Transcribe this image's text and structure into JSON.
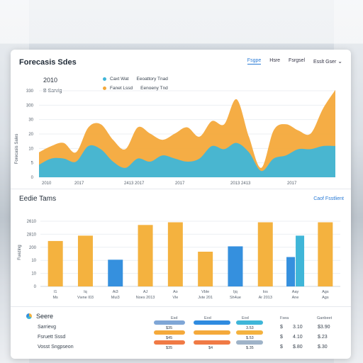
{
  "header": {
    "title": "Forecasis Sdes",
    "tabs": [
      "Fsgpe",
      "Hsre",
      "Fsrgsel"
    ],
    "account": "Esslt Gser"
  },
  "top_chart": {
    "year_label": "2010",
    "subtitle": "B Sarvig",
    "legend": [
      {
        "label": "Caxt Wat",
        "sublabel": "Eeoattory Tnad",
        "color": "#3fb6d8"
      },
      {
        "label": "Fanet Lssd",
        "sublabel": "Eenoeny Tnd",
        "color": "#f4a93b"
      }
    ],
    "ylabel": "Forecasis Sales",
    "yticks": [
      "330",
      "300",
      "30",
      "20",
      "10",
      "5",
      "0"
    ],
    "xticks": [
      "2010",
      "2017",
      "2413  2017",
      "2017",
      "2013  2413",
      "2017"
    ]
  },
  "chart_data": [
    {
      "type": "area",
      "title": "Forecasis Sdes",
      "ylabel": "Forecasis Sales",
      "x": [
        0,
        1,
        2,
        3,
        4,
        5,
        6,
        7,
        8,
        9,
        10,
        11,
        12,
        13,
        14,
        15,
        16,
        17,
        18,
        19,
        20,
        21,
        22,
        23,
        24
      ],
      "series": [
        {
          "name": "Caxt Wat",
          "color": "#3fb6d8",
          "values": [
            4,
            6,
            6,
            5,
            10,
            9,
            5,
            3,
            6,
            5,
            7,
            6,
            5,
            6,
            10,
            9,
            11,
            8,
            2,
            6,
            7,
            9,
            9,
            10,
            10
          ]
        },
        {
          "name": "Fanet Lssd",
          "color": "#f4a93b",
          "values": [
            8,
            10,
            11,
            8,
            16,
            17,
            12,
            9,
            16,
            14,
            12,
            14,
            16,
            13,
            18,
            17,
            25,
            13,
            3,
            15,
            17,
            15,
            14,
            22,
            28
          ]
        }
      ],
      "ylim": [
        0,
        30
      ]
    },
    {
      "type": "bar",
      "title": "Eedie Tams",
      "ylabel": "Fuezing",
      "categories": [
        "I1",
        "Iq",
        "Ai3",
        "AJ",
        "Ao",
        "Vble",
        "Ijq",
        "Ios",
        "Aay",
        "Ags"
      ],
      "series": [
        {
          "name": "orange",
          "color": "#f4b23f",
          "values": [
            17,
            19,
            null,
            23,
            24,
            13,
            null,
            24,
            null,
            24
          ]
        },
        {
          "name": "blue",
          "color": "#3590de",
          "values": [
            null,
            null,
            10,
            null,
            null,
            null,
            15,
            null,
            11,
            null
          ]
        },
        {
          "name": "teal",
          "color": "#3fb6d8",
          "values": [
            null,
            null,
            null,
            null,
            null,
            null,
            null,
            null,
            19,
            null
          ]
        }
      ],
      "ylim": [
        0,
        26
      ]
    }
  ],
  "bottom_chart": {
    "title": "Eedie Tams",
    "link": "Caof Fsstlient",
    "ylabel": "Fuezing",
    "yticks": [
      "2610",
      "2810",
      "200",
      "10",
      "10",
      "0"
    ],
    "xticks": [
      [
        "I1",
        "Ms"
      ],
      [
        "Iq",
        "Vwne  I03"
      ],
      [
        "Ai3",
        "Mui3"
      ],
      [
        "AJ",
        "Noes  2013"
      ],
      [
        "Ao",
        "Vle"
      ],
      [
        "Vble",
        "Jvte  201"
      ],
      [
        "Ijq",
        "Sh4ue"
      ],
      [
        "Ios",
        "Ar 2013"
      ],
      [
        "Aay",
        "Ane"
      ],
      [
        "Ags",
        "Ags"
      ]
    ]
  },
  "table": {
    "title": "Seere",
    "rows": [
      {
        "label": "Sarrievg",
        "v1": "$",
        "v2": "3.10",
        "v3": "$3.90"
      },
      {
        "label": "Fsruett Sssd",
        "v1": "$",
        "v2": "4.10",
        "v3": "$.23"
      },
      {
        "label": "Vosst Sngpseon",
        "v1": "$",
        "v2": "$.80",
        "v3": "$.30"
      }
    ],
    "col_headers": [
      "Esd",
      "Eod",
      "Eod",
      "Fsea",
      "Ganbeet"
    ],
    "pill_values": [
      [
        "$35",
        "",
        "3.53"
      ],
      [
        "$45",
        "",
        "$.53"
      ],
      [
        "$35",
        "$4",
        "$.35"
      ]
    ]
  }
}
